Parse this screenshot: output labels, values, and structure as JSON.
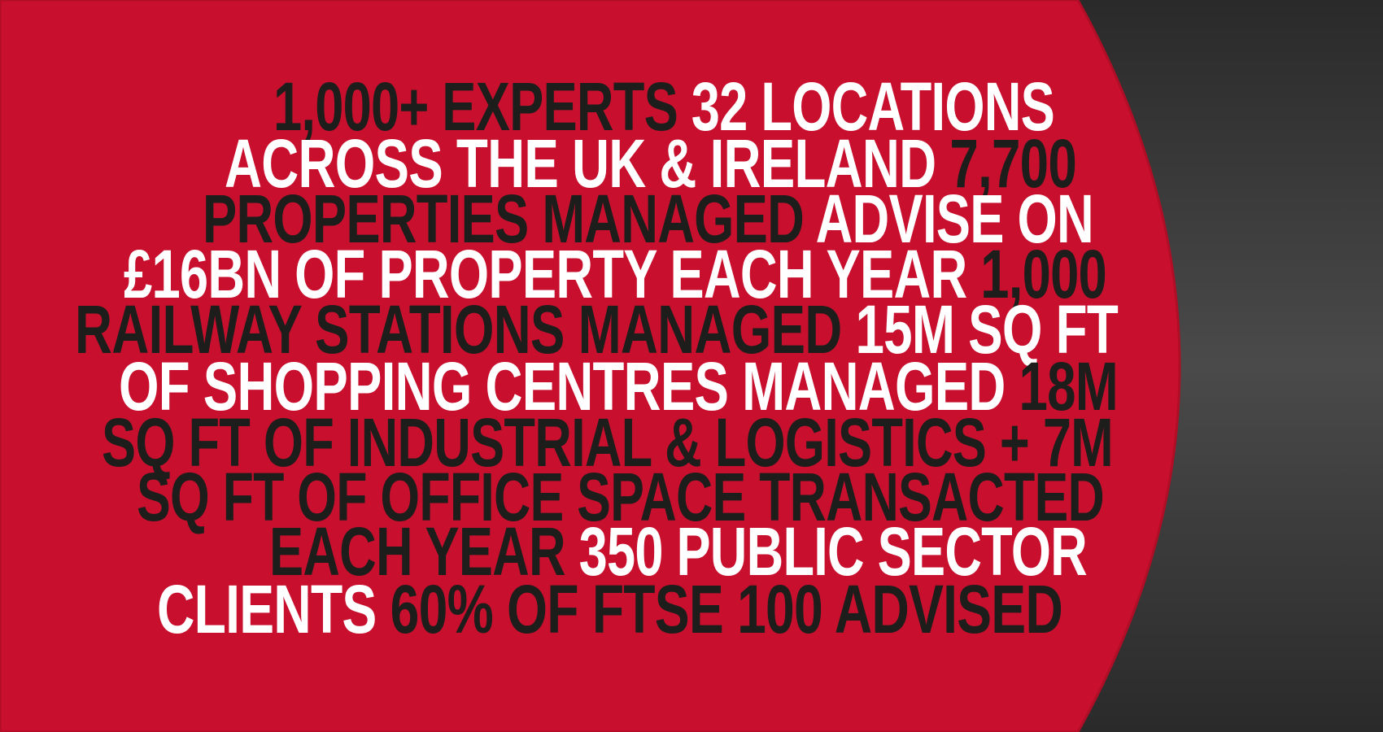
{
  "colors": {
    "red": "#c8102e",
    "dark_text": "#1d1d1b",
    "light_text": "#ffffff",
    "gray_panel": "#3a3a3a"
  },
  "lines": [
    [
      {
        "text": "1,000+ EXPERTS ",
        "tone": "dark"
      },
      {
        "text": "32 LOCATIONS",
        "tone": "light"
      }
    ],
    [
      {
        "text": "ACROSS THE UK & IRELAND ",
        "tone": "light"
      },
      {
        "text": "7,700",
        "tone": "dark"
      }
    ],
    [
      {
        "text": "PROPERTIES MANAGED ",
        "tone": "dark"
      },
      {
        "text": "ADVISE ON",
        "tone": "light"
      }
    ],
    [
      {
        "text": "£16BN OF PROPERTY EACH YEAR ",
        "tone": "light"
      },
      {
        "text": "1,000",
        "tone": "dark"
      }
    ],
    [
      {
        "text": "RAILWAY STATIONS MANAGED ",
        "tone": "dark"
      },
      {
        "text": "15M SQ FT",
        "tone": "light"
      }
    ],
    [
      {
        "text": "OF SHOPPING CENTRES MANAGED ",
        "tone": "light"
      },
      {
        "text": "18M",
        "tone": "dark"
      }
    ],
    [
      {
        "text": "SQ FT OF INDUSTRIAL & LOGISTICS + 7M",
        "tone": "dark"
      }
    ],
    [
      {
        "text": "SQ FT OF OFFICE SPACE TRANSACTED",
        "tone": "dark"
      }
    ],
    [
      {
        "text": "EACH YEAR ",
        "tone": "dark"
      },
      {
        "text": "350 PUBLIC SECTOR",
        "tone": "light"
      }
    ],
    [
      {
        "text": "CLIENTS ",
        "tone": "light"
      },
      {
        "text": "60% OF FTSE 100 ADVISED",
        "tone": "dark"
      }
    ]
  ]
}
